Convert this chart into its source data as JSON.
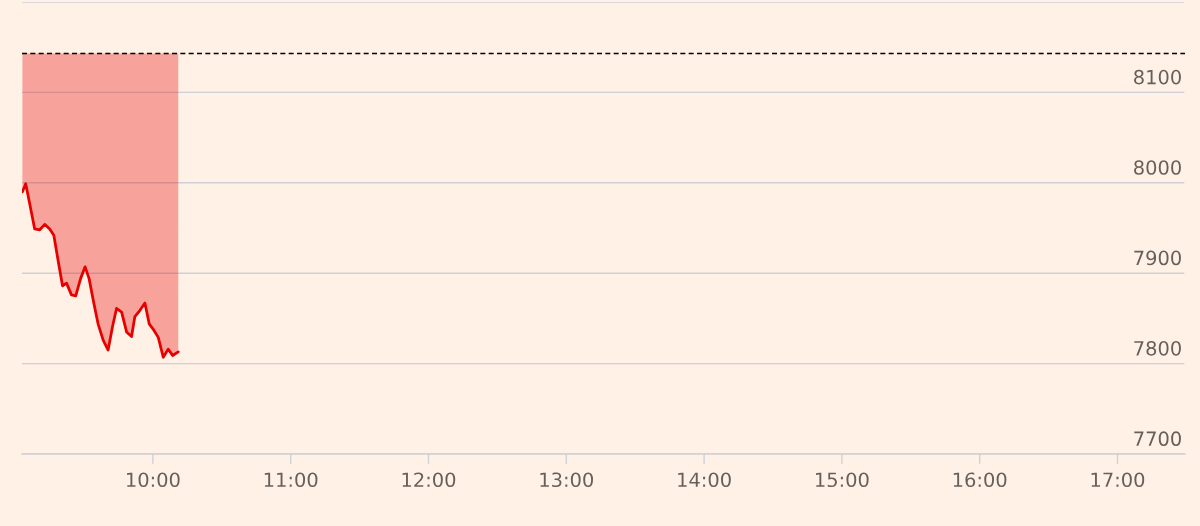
{
  "chart_data": {
    "type": "line",
    "x": [
      9.053,
      9.077,
      9.111,
      9.142,
      9.179,
      9.215,
      9.251,
      9.281,
      9.312,
      9.344,
      9.373,
      9.409,
      9.44,
      9.475,
      9.508,
      9.537,
      9.571,
      9.602,
      9.639,
      9.675,
      9.707,
      9.736,
      9.773,
      9.809,
      9.845,
      9.869,
      9.906,
      9.942,
      9.973,
      10.007,
      10.039,
      10.075,
      10.111,
      10.143,
      10.184
    ],
    "series": [
      {
        "color": "#e60000",
        "values": [
          7990,
          7999,
          7973,
          7949,
          7948,
          7954,
          7949,
          7942,
          7914,
          7886,
          7889,
          7876,
          7875,
          7894,
          7907,
          7894,
          7867,
          7844,
          7826,
          7815,
          7841,
          7861,
          7857,
          7835,
          7830,
          7852,
          7859,
          7867,
          7844,
          7837,
          7829,
          7807,
          7816,
          7809,
          7813
        ],
        "lower": [
          7990,
          7999,
          7973,
          7949,
          7948,
          7954,
          7949,
          7942,
          7914,
          7886,
          7889,
          7876,
          7875,
          7894,
          7907,
          7894,
          7867,
          7844,
          7826,
          7815,
          7841,
          7861,
          7857,
          7835,
          7830,
          7852,
          7859,
          7867,
          7844,
          7837,
          7829,
          7807,
          7816,
          7809,
          7813
        ],
        "upper": [
          8143,
          8143,
          8143,
          8143,
          8143,
          8143,
          8143,
          8143,
          8143,
          8143,
          8143,
          8143,
          8143,
          8143,
          8143,
          8143,
          8143,
          8143,
          8143,
          8143,
          8143,
          8143,
          8143,
          8143,
          8143,
          8143,
          8143,
          8143,
          8143,
          8143,
          8143,
          8143,
          8143,
          8143,
          8143
        ]
      }
    ],
    "xlim": [
      9.05,
      17.49
    ],
    "xticks": [
      {
        "value": 10,
        "label": "10:00"
      },
      {
        "value": 11,
        "label": "11:00"
      },
      {
        "value": 12,
        "label": "12:00"
      },
      {
        "value": 13,
        "label": "13:00"
      },
      {
        "value": 14,
        "label": "14:00"
      },
      {
        "value": 15,
        "label": "15:00"
      },
      {
        "value": 16,
        "label": "16:00"
      },
      {
        "value": 17,
        "label": "17:00"
      }
    ],
    "ylim": [
      7700,
      8200
    ],
    "yticks": [
      7700,
      7800,
      7900,
      8000,
      8100,
      {
        "value": 8200,
        "label": null
      }
    ],
    "ref_lines": [
      {
        "axis": "y",
        "value": 8143,
        "color": "#000000",
        "line_style": "dashed"
      }
    ],
    "grid": "y"
  }
}
